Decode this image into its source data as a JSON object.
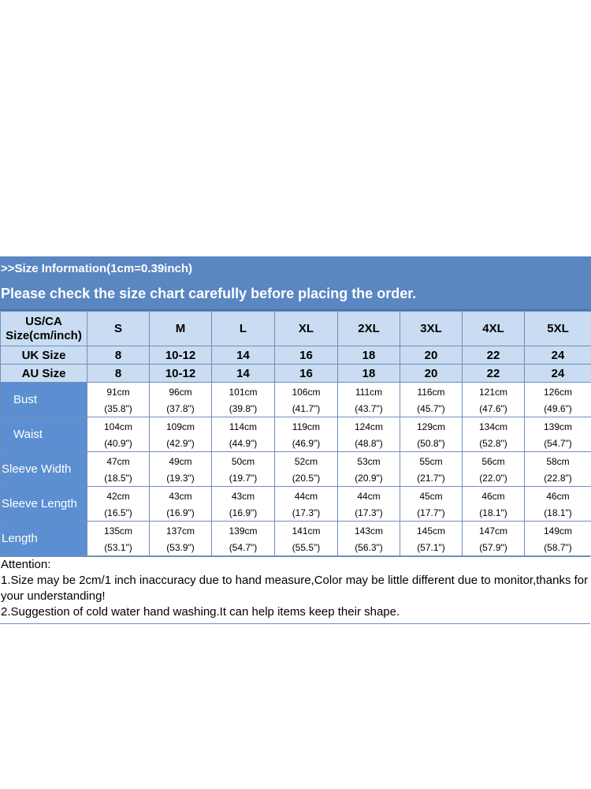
{
  "banner": {
    "title": ">>Size Information(1cm=0.39inch)",
    "subtitle": "Please check the size chart carefully before placing the order."
  },
  "size_table": {
    "header_label_line1": "US/CA",
    "header_label_line2": "Size(cm/inch)",
    "sizes": [
      "S",
      "M",
      "L",
      "XL",
      "2XL",
      "3XL",
      "4XL",
      "5XL"
    ],
    "uk_label": "UK Size",
    "uk": [
      "8",
      "10-12",
      "14",
      "16",
      "18",
      "20",
      "22",
      "24"
    ],
    "au_label": "AU Size",
    "au": [
      "8",
      "10-12",
      "14",
      "16",
      "18",
      "20",
      "22",
      "24"
    ],
    "measurements": [
      {
        "label": "Bust",
        "cm": [
          "91cm",
          "96cm",
          "101cm",
          "106cm",
          "111cm",
          "116cm",
          "121cm",
          "126cm"
        ],
        "inch": [
          "(35.8\")",
          "(37.8\")",
          "(39.8\")",
          "(41.7\")",
          "(43.7\")",
          "(45.7\")",
          "(47.6\")",
          "(49.6\")"
        ]
      },
      {
        "label": "Waist",
        "cm": [
          "104cm",
          "109cm",
          "114cm",
          "119cm",
          "124cm",
          "129cm",
          "134cm",
          "139cm"
        ],
        "inch": [
          "(40.9\")",
          "(42.9\")",
          "(44.9\")",
          "(46.9\")",
          "(48.8\")",
          "(50.8\")",
          "(52.8\")",
          "(54.7\")"
        ]
      },
      {
        "label": "Sleeve Width",
        "cm": [
          "47cm",
          "49cm",
          "50cm",
          "52cm",
          "53cm",
          "55cm",
          "56cm",
          "58cm"
        ],
        "inch": [
          "(18.5\")",
          "(19.3\")",
          "(19.7\")",
          "(20.5\")",
          "(20.9\")",
          "(21.7\")",
          "(22.0\")",
          "(22.8\")"
        ]
      },
      {
        "label": "Sleeve Length",
        "cm": [
          "42cm",
          "43cm",
          "43cm",
          "44cm",
          "44cm",
          "45cm",
          "46cm",
          "46cm"
        ],
        "inch": [
          "(16.5\")",
          "(16.9\")",
          "(16.9\")",
          "(17.3\")",
          "(17.3\")",
          "(17.7\")",
          "(18.1\")",
          "(18.1\")"
        ]
      },
      {
        "label": "Length",
        "cm": [
          "135cm",
          "137cm",
          "139cm",
          "141cm",
          "143cm",
          "145cm",
          "147cm",
          "149cm"
        ],
        "inch": [
          "(53.1\")",
          "(53.9\")",
          "(54.7\")",
          "(55.5\")",
          "(56.3\")",
          "(57.1\")",
          "(57.9\")",
          "(58.7\")"
        ]
      }
    ]
  },
  "notes": {
    "heading": "Attention:",
    "line1": "1.Size may be 2cm/1 inch inaccuracy due to hand measure,Color may be little different due to monitor,thanks for your understanding!",
    "line2": "2.Suggestion of cold water hand washing.It can help items keep their shape."
  },
  "colors": {
    "banner": "#5a86c2",
    "header_cells": "#c9dcf1",
    "row_label_cells": "#5b8fd1",
    "grid_lines": "#6f8fbc"
  }
}
